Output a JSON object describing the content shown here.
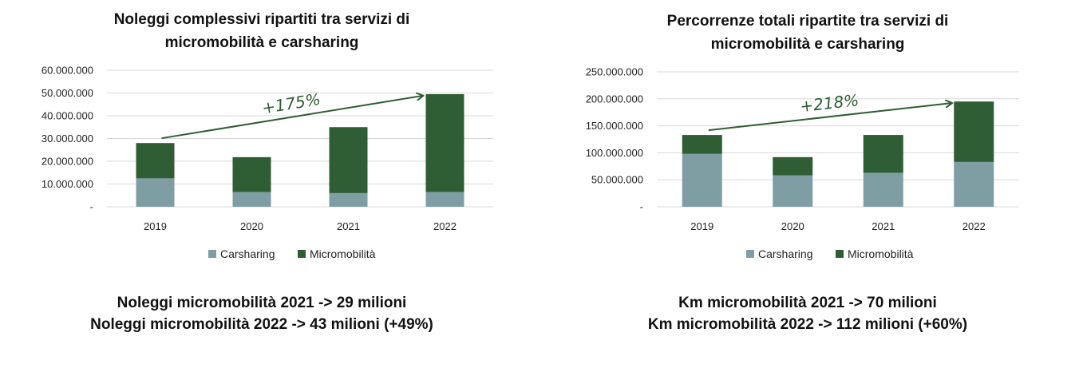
{
  "colors": {
    "carsharing": "#7f9ea4",
    "micromobilita": "#2f5d34",
    "arrow": "#2f5d34",
    "grid": "#d9d9d9"
  },
  "chart_data": [
    {
      "type": "bar",
      "stacked": true,
      "title_line1": "Noleggi complessivi ripartiti tra servizi di",
      "title_line2": "micromobilità e carsharing",
      "categories": [
        "2019",
        "2020",
        "2021",
        "2022"
      ],
      "series": [
        {
          "name": "Carsharing",
          "values": [
            12500000,
            6500000,
            6000000,
            6500000
          ]
        },
        {
          "name": "Micromobilità",
          "values": [
            15500000,
            15300000,
            29000000,
            43000000
          ]
        }
      ],
      "ylim": [
        0,
        60000000
      ],
      "yticks": [
        0,
        10000000,
        20000000,
        30000000,
        40000000,
        50000000,
        60000000
      ],
      "ytick_labels": [
        "-",
        "10.000.000",
        "20.000.000",
        "30.000.000",
        "40.000.000",
        "50.000.000",
        "60.000.000"
      ],
      "growth_annotation": {
        "label": "+175%",
        "from": "2019",
        "to": "2022"
      },
      "grid": true,
      "legend": "bottom",
      "summary_line1": "Noleggi micromobilità 2021 -> 29 milioni",
      "summary_line2": "Noleggi micromobilità 2022 -> 43 milioni (+49%)"
    },
    {
      "type": "bar",
      "stacked": true,
      "title_line1": "Percorrenze totali ripartite tra servizi di",
      "title_line2": "micromobilità e carsharing",
      "categories": [
        "2019",
        "2020",
        "2021",
        "2022"
      ],
      "series": [
        {
          "name": "Carsharing",
          "values": [
            98000000,
            58000000,
            63000000,
            83000000
          ]
        },
        {
          "name": "Micromobilità",
          "values": [
            35000000,
            34000000,
            70000000,
            112000000
          ]
        }
      ],
      "ylim": [
        0,
        250000000
      ],
      "yticks": [
        0,
        50000000,
        100000000,
        150000000,
        200000000,
        250000000
      ],
      "ytick_labels": [
        "-",
        "50.000.000",
        "100.000.000",
        "150.000.000",
        "200.000.000",
        "250.000.000"
      ],
      "growth_annotation": {
        "label": "+218%",
        "from": "2019",
        "to": "2022"
      },
      "grid": true,
      "legend": "bottom",
      "summary_line1": "Km micromobilità 2021 -> 70 milioni",
      "summary_line2": "Km micromobilità 2022 -> 112 milioni (+60%)"
    }
  ]
}
